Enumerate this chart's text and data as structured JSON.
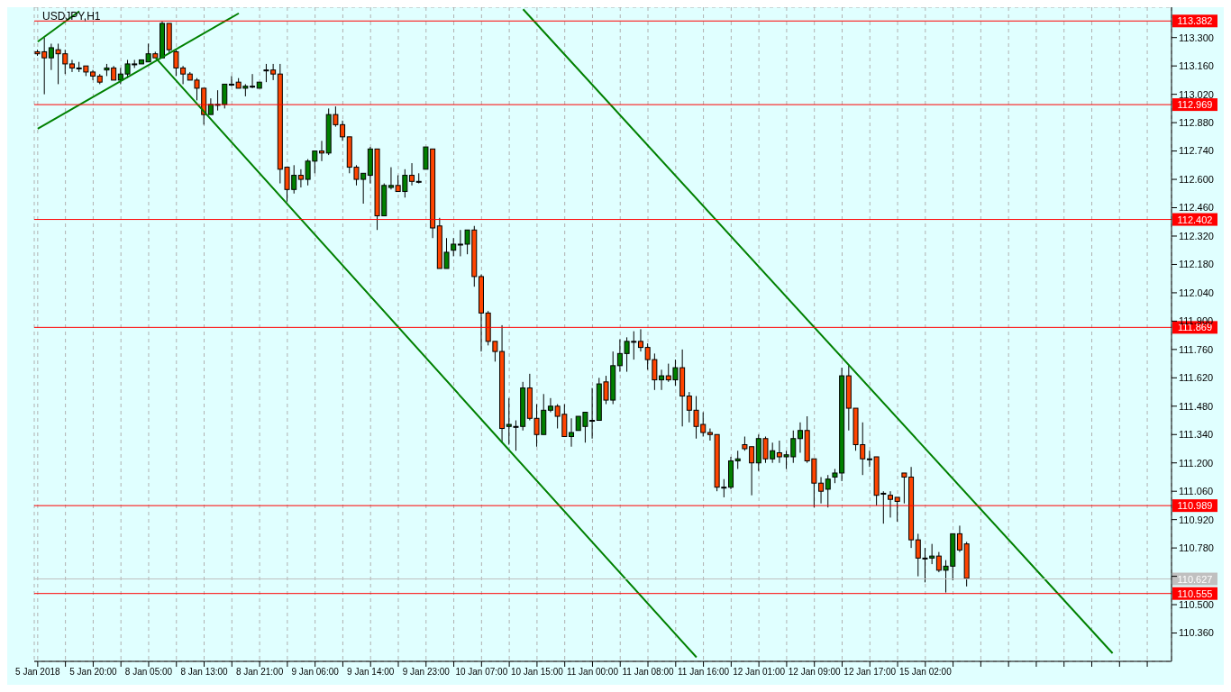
{
  "chart_data": {
    "type": "candlestick",
    "title": "USDJPY,H1",
    "categories": [
      "5 Jan 2018",
      null,
      null,
      null,
      null,
      null,
      null,
      null,
      "5 Jan 20:00",
      null,
      null,
      null,
      null,
      null,
      null,
      null,
      "8 Jan 05:00",
      null,
      null,
      null,
      null,
      null,
      null,
      null,
      "8 Jan 13:00",
      null,
      null,
      null,
      null,
      null,
      null,
      null,
      "8 Jan 21:00",
      null,
      null,
      null,
      null,
      null,
      null,
      null,
      "9 Jan 06:00",
      null,
      null,
      null,
      null,
      null,
      null,
      null,
      "9 Jan 14:00",
      null,
      null,
      null,
      null,
      null,
      null,
      null,
      "9 Jan 23:00",
      null,
      null,
      null,
      null,
      null,
      null,
      null,
      "10 Jan 07:00",
      null,
      null,
      null,
      null,
      null,
      null,
      null,
      "10 Jan 15:00",
      null,
      null,
      null,
      null,
      null,
      null,
      null,
      "11 Jan 00:00",
      null,
      null,
      null,
      null,
      null,
      null,
      null,
      "11 Jan 08:00",
      null,
      null,
      null,
      null,
      null,
      null,
      null,
      "11 Jan 16:00",
      null,
      null,
      null,
      null,
      null,
      null,
      null,
      "12 Jan 01:00",
      null,
      null,
      null,
      null,
      null,
      null,
      null,
      "12 Jan 09:00",
      null,
      null,
      null,
      null,
      null,
      null,
      null,
      "12 Jan 17:00",
      null,
      null,
      null,
      null,
      null,
      null,
      null,
      "15 Jan 02:00",
      null,
      null,
      null,
      null,
      null,
      null,
      null,
      null,
      null,
      null,
      null,
      null,
      null,
      null,
      null,
      null,
      null,
      null,
      null,
      null,
      null,
      null,
      null,
      null,
      null,
      null,
      null,
      null,
      null,
      null,
      null,
      null,
      null,
      null,
      null
    ],
    "ohlc": [
      [
        113.23,
        113.24,
        113.21,
        113.22
      ],
      [
        113.23,
        113.3,
        113.02,
        113.2
      ],
      [
        113.2,
        113.27,
        113.14,
        113.25
      ],
      [
        113.24,
        113.27,
        113.07,
        113.22
      ],
      [
        113.22,
        113.24,
        113.12,
        113.17
      ],
      [
        113.17,
        113.19,
        113.13,
        113.15
      ],
      [
        113.15,
        113.18,
        113.13,
        113.15
      ],
      [
        113.16,
        113.16,
        113.11,
        113.13
      ],
      [
        113.13,
        113.14,
        113.09,
        113.11
      ],
      [
        113.11,
        113.12,
        113.07,
        113.08
      ],
      [
        113.14,
        113.17,
        113.11,
        113.15
      ],
      [
        113.15,
        113.16,
        113.09,
        113.09
      ],
      [
        113.09,
        113.15,
        113.07,
        113.12
      ],
      [
        113.12,
        113.19,
        113.1,
        113.17
      ],
      [
        113.17,
        113.19,
        113.15,
        113.17
      ],
      [
        113.17,
        113.19,
        113.17,
        113.19
      ],
      [
        113.18,
        113.27,
        113.18,
        113.22
      ],
      [
        113.22,
        113.23,
        113.2,
        113.2
      ],
      [
        113.2,
        113.38,
        113.2,
        113.37
      ],
      [
        113.37,
        113.37,
        113.22,
        113.24
      ],
      [
        113.23,
        113.24,
        113.11,
        113.15
      ],
      [
        113.15,
        113.16,
        113.07,
        113.12
      ],
      [
        113.12,
        113.13,
        113.09,
        113.09
      ],
      [
        113.09,
        113.1,
        112.99,
        113.05
      ],
      [
        113.05,
        113.05,
        112.87,
        112.92
      ],
      [
        112.92,
        113.0,
        112.92,
        112.97
      ],
      [
        112.97,
        113.04,
        112.94,
        112.97
      ],
      [
        112.97,
        113.07,
        112.95,
        113.07
      ],
      [
        113.07,
        113.11,
        113.06,
        113.07
      ],
      [
        113.08,
        113.1,
        113.05,
        113.05
      ],
      [
        113.05,
        113.07,
        113.01,
        113.06
      ],
      [
        113.06,
        113.12,
        113.05,
        113.06
      ],
      [
        113.05,
        113.08,
        113.05,
        113.08
      ],
      [
        113.14,
        113.17,
        113.08,
        113.14
      ],
      [
        113.14,
        113.17,
        113.09,
        113.12
      ],
      [
        113.12,
        113.17,
        112.58,
        112.65
      ],
      [
        112.66,
        112.66,
        112.49,
        112.55
      ],
      [
        112.55,
        112.67,
        112.53,
        112.62
      ],
      [
        112.62,
        112.65,
        112.56,
        112.6
      ],
      [
        112.6,
        112.7,
        112.57,
        112.69
      ],
      [
        112.69,
        112.74,
        112.63,
        112.74
      ],
      [
        112.74,
        112.79,
        112.69,
        112.73
      ],
      [
        112.73,
        112.95,
        112.72,
        112.92
      ],
      [
        112.92,
        112.96,
        112.86,
        112.87
      ],
      [
        112.87,
        112.89,
        112.79,
        112.81
      ],
      [
        112.81,
        112.81,
        112.63,
        112.66
      ],
      [
        112.66,
        112.67,
        112.57,
        112.6
      ],
      [
        112.6,
        112.63,
        112.48,
        112.63
      ],
      [
        112.62,
        112.76,
        112.58,
        112.75
      ],
      [
        112.75,
        112.75,
        112.35,
        112.42
      ],
      [
        112.42,
        112.58,
        112.42,
        112.57
      ],
      [
        112.56,
        112.66,
        112.55,
        112.57
      ],
      [
        112.57,
        112.62,
        112.54,
        112.54
      ],
      [
        112.54,
        112.65,
        112.51,
        112.62
      ],
      [
        112.62,
        112.68,
        112.57,
        112.59
      ],
      [
        112.59,
        112.63,
        112.58,
        112.59
      ],
      [
        112.65,
        112.76,
        112.65,
        112.76
      ],
      [
        112.75,
        112.75,
        112.31,
        112.36
      ],
      [
        112.37,
        112.41,
        112.16,
        112.16
      ],
      [
        112.16,
        112.31,
        112.16,
        112.24
      ],
      [
        112.25,
        112.31,
        112.22,
        112.28
      ],
      [
        112.28,
        112.35,
        112.22,
        112.28
      ],
      [
        112.28,
        112.35,
        112.23,
        112.35
      ],
      [
        112.35,
        112.37,
        112.07,
        112.12
      ],
      [
        112.12,
        112.13,
        111.75,
        111.94
      ],
      [
        111.94,
        111.95,
        111.78,
        111.8
      ],
      [
        111.8,
        111.8,
        111.7,
        111.75
      ],
      [
        111.75,
        111.88,
        111.3,
        111.37
      ],
      [
        111.38,
        111.52,
        111.29,
        111.39
      ],
      [
        111.38,
        111.41,
        111.26,
        111.38
      ],
      [
        111.38,
        111.6,
        111.36,
        111.57
      ],
      [
        111.57,
        111.64,
        111.41,
        111.42
      ],
      [
        111.42,
        111.49,
        111.28,
        111.34
      ],
      [
        111.34,
        111.54,
        111.34,
        111.46
      ],
      [
        111.46,
        111.52,
        111.45,
        111.48
      ],
      [
        111.48,
        111.49,
        111.37,
        111.43
      ],
      [
        111.44,
        111.49,
        111.33,
        111.33
      ],
      [
        111.33,
        111.42,
        111.28,
        111.35
      ],
      [
        111.36,
        111.43,
        111.36,
        111.43
      ],
      [
        111.38,
        111.45,
        111.3,
        111.45
      ],
      [
        111.41,
        111.57,
        111.32,
        111.41
      ],
      [
        111.41,
        111.62,
        111.41,
        111.59
      ],
      [
        111.6,
        111.63,
        111.49,
        111.51
      ],
      [
        111.51,
        111.75,
        111.49,
        111.68
      ],
      [
        111.68,
        111.81,
        111.65,
        111.74
      ],
      [
        111.74,
        111.82,
        111.65,
        111.8
      ],
      [
        111.8,
        111.85,
        111.71,
        111.8
      ],
      [
        111.8,
        111.86,
        111.75,
        111.77
      ],
      [
        111.77,
        111.79,
        111.66,
        111.71
      ],
      [
        111.71,
        111.74,
        111.56,
        111.61
      ],
      [
        111.61,
        111.66,
        111.56,
        111.63
      ],
      [
        111.63,
        111.69,
        111.6,
        111.61
      ],
      [
        111.61,
        111.71,
        111.58,
        111.67
      ],
      [
        111.67,
        111.76,
        111.38,
        111.53
      ],
      [
        111.53,
        111.55,
        111.4,
        111.46
      ],
      [
        111.46,
        111.53,
        111.32,
        111.38
      ],
      [
        111.39,
        111.45,
        111.33,
        111.35
      ],
      [
        111.35,
        111.37,
        111.31,
        111.34
      ],
      [
        111.34,
        111.34,
        111.06,
        111.08
      ],
      [
        111.08,
        111.12,
        111.03,
        111.08
      ],
      [
        111.08,
        111.23,
        111.07,
        111.21
      ],
      [
        111.21,
        111.26,
        111.17,
        111.22
      ],
      [
        111.29,
        111.33,
        111.26,
        111.27
      ],
      [
        111.28,
        111.28,
        111.04,
        111.2
      ],
      [
        111.2,
        111.34,
        111.16,
        111.32
      ],
      [
        111.32,
        111.33,
        111.2,
        111.22
      ],
      [
        111.22,
        111.3,
        111.2,
        111.26
      ],
      [
        111.25,
        111.31,
        111.2,
        111.23
      ],
      [
        111.23,
        111.26,
        111.17,
        111.24
      ],
      [
        111.23,
        111.36,
        111.2,
        111.32
      ],
      [
        111.32,
        111.4,
        111.25,
        111.36
      ],
      [
        111.36,
        111.43,
        111.2,
        111.21
      ],
      [
        111.22,
        111.22,
        110.98,
        111.1
      ],
      [
        111.1,
        111.13,
        111.0,
        111.06
      ],
      [
        111.07,
        111.14,
        110.98,
        111.12
      ],
      [
        111.13,
        111.17,
        111.1,
        111.15
      ],
      [
        111.15,
        111.67,
        111.11,
        111.63
      ],
      [
        111.63,
        111.68,
        111.36,
        111.47
      ],
      [
        111.47,
        111.47,
        111.26,
        111.29
      ],
      [
        111.29,
        111.4,
        111.14,
        111.22
      ],
      [
        111.22,
        111.26,
        111.18,
        111.22
      ],
      [
        111.23,
        111.23,
        110.99,
        111.04
      ],
      [
        111.05,
        111.06,
        110.9,
        111.05
      ],
      [
        111.04,
        111.06,
        110.93,
        111.02
      ],
      [
        111.03,
        111.03,
        110.91,
        111.01
      ],
      [
        111.15,
        111.15,
        111.0,
        111.13
      ],
      [
        111.13,
        111.18,
        110.78,
        110.82
      ],
      [
        110.82,
        110.85,
        110.64,
        110.73
      ],
      [
        110.73,
        110.78,
        110.61,
        110.73
      ],
      [
        110.73,
        110.8,
        110.7,
        110.74
      ],
      [
        110.74,
        110.76,
        110.66,
        110.67
      ],
      [
        110.67,
        110.72,
        110.56,
        110.69
      ],
      [
        110.69,
        110.85,
        110.62,
        110.85
      ],
      [
        110.85,
        110.89,
        110.76,
        110.77
      ],
      [
        110.8,
        110.81,
        110.59,
        110.63
      ],
      null,
      null,
      null,
      null,
      null,
      null,
      null,
      null,
      null,
      null,
      null,
      null,
      null,
      null,
      null,
      null,
      null,
      null,
      null,
      null,
      null,
      null,
      null,
      null,
      null,
      null,
      null,
      null,
      null
    ],
    "colors": [
      "#ff4500",
      "#ff4500",
      "#008000",
      "#ff4500",
      "#ff4500",
      "#ff4500",
      "#000000",
      "#ff4500",
      "#ff4500",
      "#ff4500",
      "#008000",
      "#ff4500",
      "#008000",
      "#008000",
      "#000000",
      "#008000",
      "#008000",
      "#ff4500",
      "#008000",
      "#ff4500",
      "#ff4500",
      "#ff4500",
      "#ff4500",
      "#ff4500",
      "#ff4500",
      "#008000",
      "#000000",
      "#008000",
      "#000000",
      "#ff4500",
      "#008000",
      "#000000",
      "#008000",
      "#000000",
      "#ff4500",
      "#ff4500",
      "#ff4500",
      "#008000",
      "#ff4500",
      "#008000",
      "#008000",
      "#ff4500",
      "#008000",
      "#ff4500",
      "#ff4500",
      "#ff4500",
      "#ff4500",
      "#008000",
      "#008000",
      "#ff4500",
      "#008000",
      "#008000",
      "#ff4500",
      "#008000",
      "#ff4500",
      "#000000",
      "#008000",
      "#ff4500",
      "#ff4500",
      "#008000",
      "#008000",
      "#000000",
      "#008000",
      "#ff4500",
      "#ff4500",
      "#ff4500",
      "#ff4500",
      "#ff4500",
      "#008000",
      "#000000",
      "#008000",
      "#ff4500",
      "#ff4500",
      "#008000",
      "#008000",
      "#ff4500",
      "#ff4500",
      "#008000",
      "#008000",
      "#008000",
      "#000000",
      "#008000",
      "#ff4500",
      "#008000",
      "#008000",
      "#008000",
      "#000000",
      "#ff4500",
      "#ff4500",
      "#ff4500",
      "#008000",
      "#ff4500",
      "#008000",
      "#ff4500",
      "#ff4500",
      "#ff4500",
      "#ff4500",
      "#ff4500",
      "#ff4500",
      "#000000",
      "#008000",
      "#008000",
      "#ff4500",
      "#ff4500",
      "#008000",
      "#ff4500",
      "#008000",
      "#ff4500",
      "#008000",
      "#008000",
      "#008000",
      "#ff4500",
      "#ff4500",
      "#ff4500",
      "#008000",
      "#008000",
      "#008000",
      "#ff4500",
      "#ff4500",
      "#ff4500",
      "#000000",
      "#ff4500",
      "#000000",
      "#ff4500",
      "#ff4500",
      "#ff4500",
      "#ff4500",
      "#ff4500",
      "#000000",
      "#008000",
      "#ff4500",
      "#008000",
      "#008000",
      "#ff4500",
      "#ff4500",
      null,
      null,
      null,
      null,
      null,
      null,
      null,
      null,
      null,
      null,
      null,
      null,
      null,
      null,
      null,
      null,
      null,
      null,
      null,
      null,
      null,
      null,
      null,
      null,
      null,
      null,
      null,
      null,
      null
    ],
    "series": [
      {
        "type": "line",
        "color": "#008000",
        "values": [
          112.85,
          null,
          null,
          null,
          null,
          null,
          null,
          null,
          null,
          null,
          null,
          null,
          null,
          null,
          null,
          null,
          null,
          null,
          null,
          null,
          null,
          null,
          null,
          null,
          null,
          null,
          null,
          null,
          null,
          113.42,
          null,
          null,
          null,
          null,
          null,
          null,
          null,
          null,
          null,
          null,
          null,
          null,
          null,
          null,
          null,
          null,
          null,
          null,
          null,
          null,
          null,
          null,
          null,
          null,
          null,
          null,
          null,
          null,
          null,
          null,
          null,
          null,
          null,
          null,
          null,
          null,
          null,
          null,
          null,
          null,
          null,
          null,
          null,
          null,
          null,
          null,
          null,
          null,
          null,
          null,
          null,
          null,
          null,
          null,
          null,
          null,
          null,
          null,
          null,
          null,
          null,
          null,
          null,
          null,
          null,
          null,
          null,
          null,
          null,
          null,
          null,
          null,
          null,
          null,
          null,
          null,
          null,
          null,
          null,
          null,
          null,
          null,
          null,
          null,
          null,
          null,
          null,
          null,
          null,
          null,
          null,
          null,
          null,
          null,
          null,
          null,
          null,
          null,
          null,
          null,
          null,
          null,
          null,
          null,
          null,
          null,
          null,
          null,
          null,
          null,
          null,
          null,
          null,
          null,
          null,
          null,
          null,
          null,
          null,
          null,
          null,
          null,
          null,
          null,
          null,
          null,
          null,
          null,
          null,
          null,
          null,
          null,
          null,
          null
        ]
      },
      {
        "type": "line",
        "color": "#008000",
        "values": [
          113.28,
          null,
          null,
          null,
          null,
          null,
          113.43,
          null,
          null,
          null,
          null,
          null,
          null,
          null,
          null,
          null,
          null,
          null,
          null,
          null,
          null,
          null,
          null,
          null,
          null,
          null,
          null,
          null,
          null,
          null,
          null,
          null,
          null,
          null,
          null,
          null,
          null,
          null,
          null,
          null,
          null,
          null,
          null,
          null,
          null,
          null,
          null,
          null,
          null,
          null,
          null,
          null,
          null,
          null,
          null,
          null,
          null,
          null,
          null,
          null,
          null,
          null,
          null,
          null,
          null,
          null,
          null,
          null,
          null,
          null,
          null,
          null,
          null,
          null,
          null,
          null,
          null,
          null,
          null,
          null,
          null,
          null,
          null,
          null,
          null,
          null,
          null,
          null,
          null,
          null,
          null,
          null,
          null,
          null,
          null,
          null,
          null,
          null,
          null,
          null,
          null,
          null,
          null,
          null,
          null,
          null,
          null,
          null,
          null,
          null,
          null,
          null,
          null,
          null,
          null,
          null,
          null,
          null,
          null,
          null,
          null,
          null,
          null,
          null,
          null,
          null,
          null,
          null,
          null,
          null,
          null,
          null,
          null,
          null,
          null,
          null,
          null,
          null,
          null,
          null,
          null,
          null,
          null,
          null,
          null,
          null,
          null,
          null,
          null,
          null,
          null,
          null,
          null,
          null,
          null,
          null,
          null,
          null,
          null,
          null,
          null,
          null,
          null,
          null
        ]
      },
      {
        "type": "line",
        "color": "#008000",
        "values": [
          null,
          null,
          null,
          null,
          null,
          null,
          null,
          null,
          null,
          null,
          null,
          null,
          null,
          null,
          null,
          null,
          null,
          113.2,
          null,
          null,
          null,
          null,
          null,
          null,
          null,
          null,
          null,
          null,
          null,
          null,
          null,
          null,
          null,
          null,
          null,
          null,
          null,
          null,
          null,
          null,
          null,
          null,
          null,
          null,
          null,
          null,
          null,
          null,
          null,
          null,
          null,
          null,
          null,
          null,
          null,
          null,
          null,
          null,
          null,
          null,
          null,
          null,
          null,
          null,
          null,
          null,
          null,
          111.3,
          null,
          null,
          null,
          null,
          null,
          null,
          null,
          null,
          null,
          null,
          null,
          null,
          null,
          null,
          null,
          null,
          null,
          null,
          null,
          null,
          null,
          null,
          null,
          null,
          null,
          null,
          null,
          110.24,
          null,
          null,
          null,
          null,
          null,
          null,
          null,
          null,
          null,
          null,
          null,
          null,
          null,
          null,
          null,
          null,
          null,
          null,
          null,
          null,
          null,
          null,
          null,
          null,
          null,
          null,
          null,
          null,
          null,
          null,
          null,
          null,
          null,
          null,
          null,
          null,
          null,
          null,
          null,
          null,
          null,
          null,
          null,
          null,
          null,
          null,
          null,
          null,
          null,
          null,
          null,
          null,
          null,
          null,
          null,
          null,
          null,
          null,
          null,
          null,
          null,
          null,
          null,
          null,
          null,
          null,
          null,
          null
        ]
      },
      {
        "type": "line",
        "color": "#008000",
        "values": [
          null,
          null,
          null,
          null,
          null,
          null,
          null,
          null,
          null,
          null,
          null,
          null,
          null,
          null,
          null,
          null,
          null,
          null,
          null,
          null,
          null,
          null,
          null,
          null,
          null,
          null,
          null,
          null,
          null,
          null,
          null,
          null,
          null,
          null,
          null,
          null,
          null,
          null,
          null,
          null,
          null,
          null,
          null,
          null,
          null,
          null,
          null,
          null,
          null,
          null,
          null,
          null,
          null,
          null,
          null,
          null,
          null,
          null,
          null,
          null,
          null,
          null,
          null,
          null,
          null,
          null,
          null,
          null,
          null,
          null,
          113.44,
          null,
          null,
          null,
          null,
          null,
          null,
          null,
          null,
          null,
          null,
          null,
          null,
          null,
          null,
          null,
          null,
          null,
          null,
          null,
          null,
          null,
          null,
          null,
          null,
          null,
          null,
          null,
          null,
          null,
          null,
          null,
          null,
          null,
          null,
          null,
          null,
          null,
          null,
          null,
          null,
          null,
          null,
          null,
          null,
          null,
          null,
          null,
          null,
          null,
          null,
          null,
          null,
          null,
          null,
          null,
          null,
          null,
          null,
          null,
          null,
          null,
          null,
          null,
          null,
          null,
          null,
          null,
          null,
          null,
          null,
          null,
          null,
          null,
          null,
          null,
          null,
          null,
          null,
          null,
          null,
          null,
          null,
          null,
          null,
          110.26,
          null,
          null,
          null,
          null,
          null,
          null,
          null,
          null
        ]
      }
    ],
    "ylim": [
      110.22,
      113.45
    ],
    "yticks": [
      {
        "value": 113.3,
        "label": "113.300"
      },
      {
        "value": 113.16,
        "label": "113.160"
      },
      {
        "value": 113.02,
        "label": "113.020"
      },
      {
        "value": 112.88,
        "label": "112.880"
      },
      {
        "value": 112.74,
        "label": "112.740"
      },
      {
        "value": 112.6,
        "label": "112.600"
      },
      {
        "value": 112.46,
        "label": "112.460"
      },
      {
        "value": 112.32,
        "label": "112.320"
      },
      {
        "value": 112.18,
        "label": "112.180"
      },
      {
        "value": 112.04,
        "label": "112.040"
      },
      {
        "value": 111.9,
        "label": "111.900"
      },
      {
        "value": 111.76,
        "label": "111.760"
      },
      {
        "value": 111.62,
        "label": "111.620"
      },
      {
        "value": 111.48,
        "label": "111.480"
      },
      {
        "value": 111.34,
        "label": "111.340"
      },
      {
        "value": 111.2,
        "label": "111.200"
      },
      {
        "value": 111.06,
        "label": "111.060"
      },
      {
        "value": 110.92,
        "label": "110.920"
      },
      {
        "value": 110.78,
        "label": "110.780"
      },
      {
        "value": 110.64,
        "label": null
      },
      {
        "value": 110.5,
        "label": "110.500"
      },
      {
        "value": 110.36,
        "label": "110.360"
      }
    ],
    "ref_lines": [
      {
        "axis": "y",
        "value": 113.382,
        "label": "113.382",
        "color": "#ff0000"
      },
      {
        "axis": "y",
        "value": 112.969,
        "label": "112.969",
        "color": "#ff0000"
      },
      {
        "axis": "y",
        "value": 112.402,
        "label": "112.402",
        "color": "#ff0000"
      },
      {
        "axis": "y",
        "value": 111.869,
        "label": "111.869",
        "color": "#ff0000"
      },
      {
        "axis": "y",
        "value": 110.989,
        "label": "110.989",
        "color": "#ff0000"
      },
      {
        "axis": "y",
        "value": 110.627,
        "label": "110.627",
        "color": "#c0c0c0"
      },
      {
        "axis": "y",
        "value": 110.555,
        "label": "110.555",
        "color": "#ff0000"
      }
    ],
    "grid": true
  }
}
